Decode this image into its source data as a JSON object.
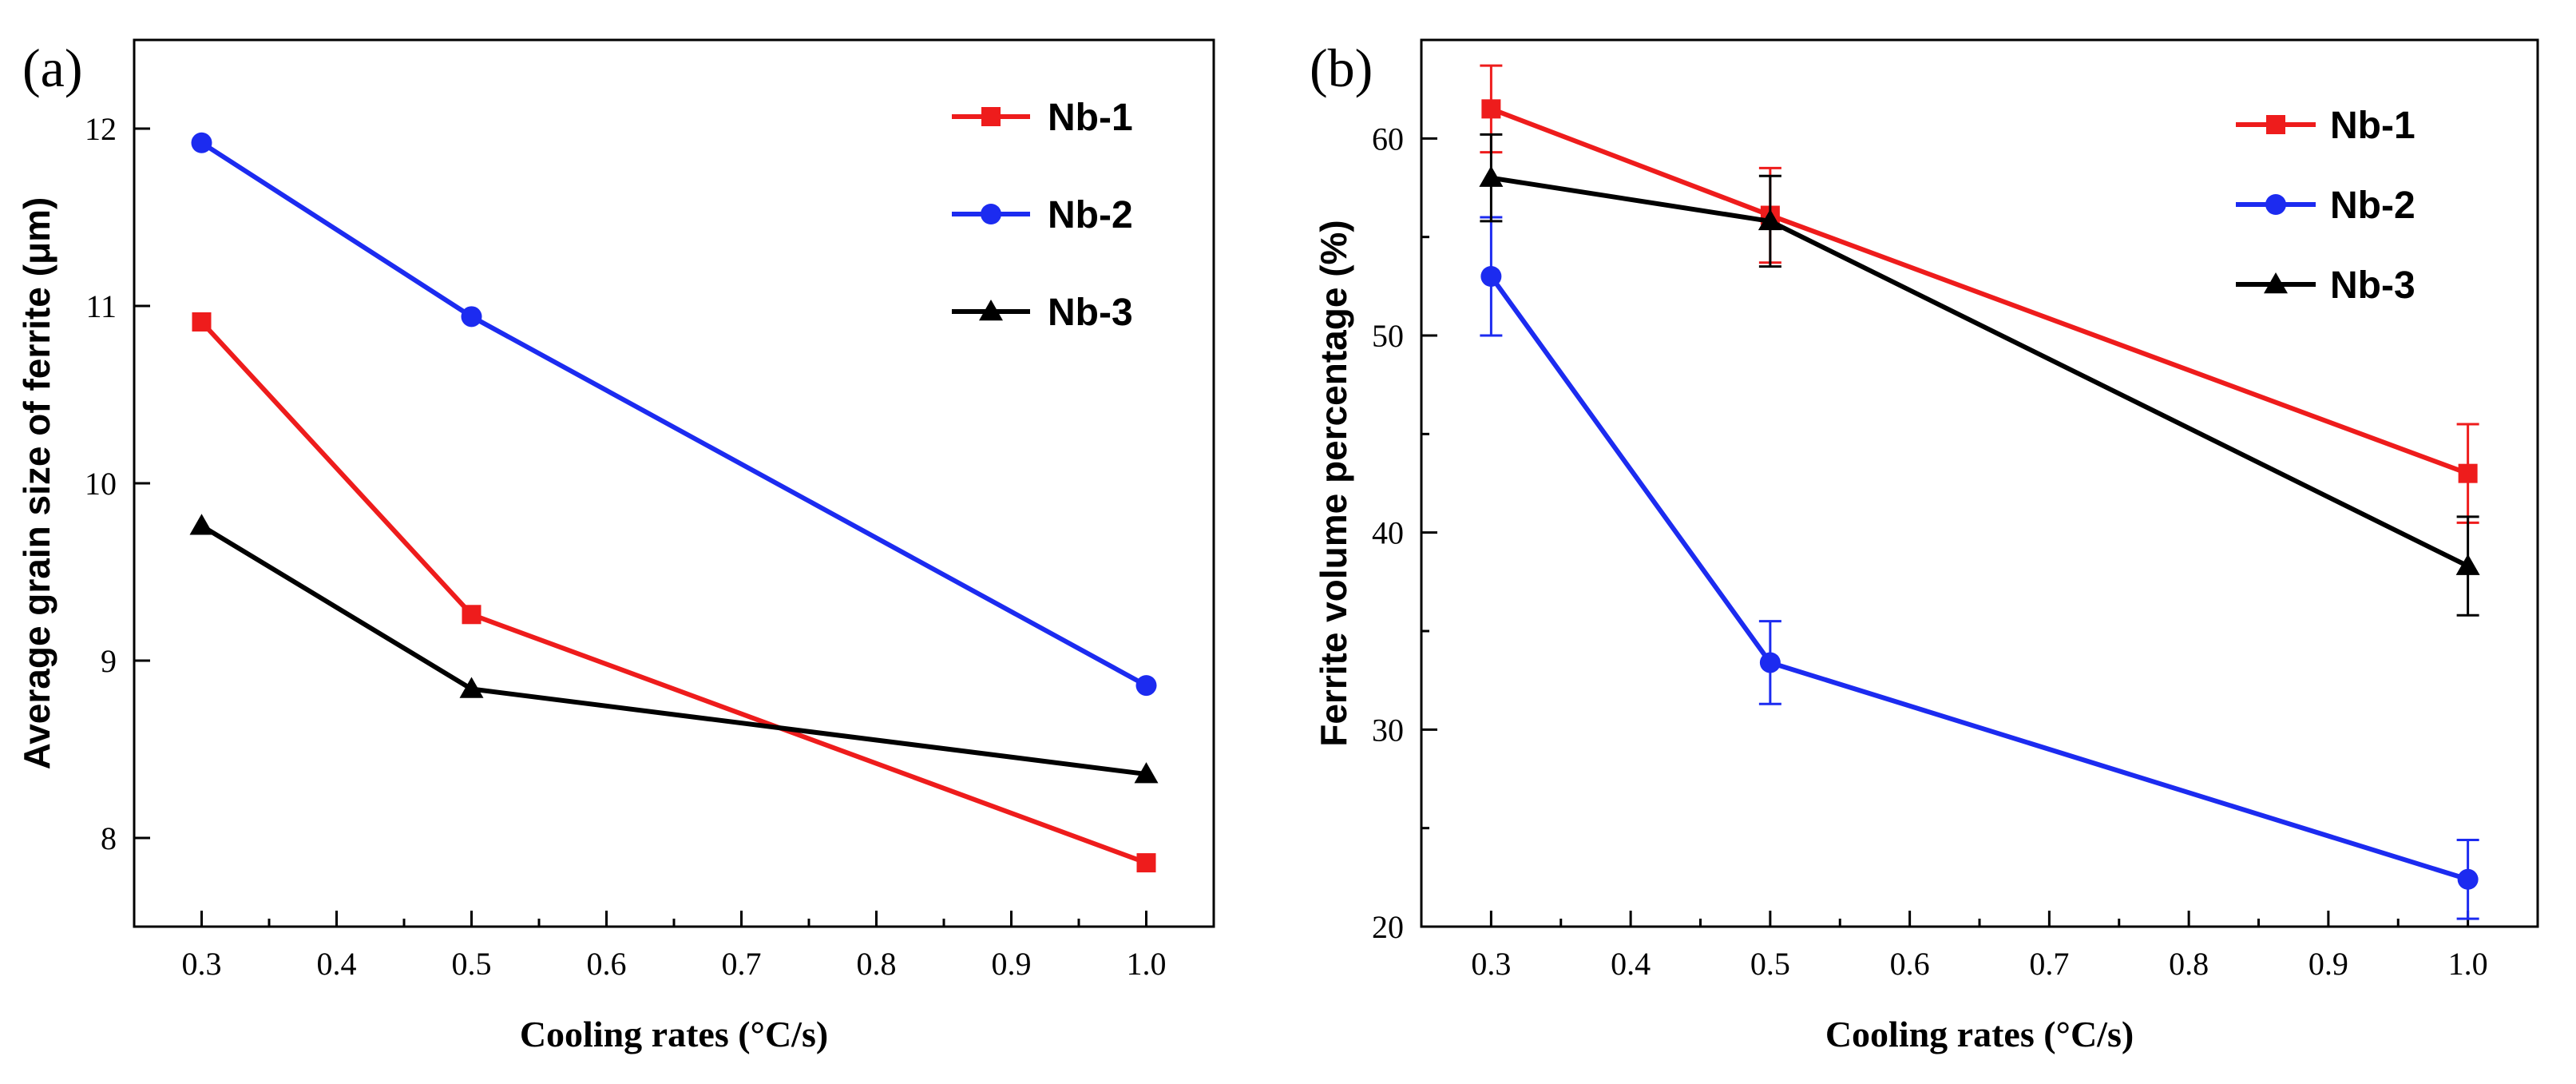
{
  "chart_data": [
    {
      "type": "line",
      "panel_label": "(a)",
      "title": "",
      "xlabel": "Cooling rates (°C/s)",
      "ylabel": "Average grain size of ferrite (μm)",
      "x": [
        0.3,
        0.5,
        1.0
      ],
      "xlim": [
        0.25,
        1.05
      ],
      "ylim": [
        7.5,
        12.5
      ],
      "xticks": [
        "0.3",
        "0.4",
        "0.5",
        "0.6",
        "0.7",
        "0.8",
        "0.9",
        "1.0"
      ],
      "yticks": [
        "8",
        "9",
        "10",
        "11",
        "12"
      ],
      "legend_position": "top-right",
      "grid": false,
      "series": [
        {
          "name": "Nb-1",
          "color": "#ee1c1c",
          "marker": "square",
          "values": [
            10.91,
            9.26,
            7.86
          ]
        },
        {
          "name": "Nb-2",
          "color": "#1c2bf0",
          "marker": "circle",
          "values": [
            11.92,
            10.94,
            8.86
          ]
        },
        {
          "name": "Nb-3",
          "color": "#000000",
          "marker": "triangle",
          "values": [
            9.76,
            8.84,
            8.36
          ]
        }
      ]
    },
    {
      "type": "line",
      "panel_label": "(b)",
      "title": "",
      "xlabel": "Cooling rates (°C/s)",
      "ylabel": "Ferrite volume percentage (%)",
      "x": [
        0.3,
        0.5,
        1.0
      ],
      "xlim": [
        0.25,
        1.05
      ],
      "ylim": [
        20,
        65
      ],
      "xticks": [
        "0.3",
        "0.4",
        "0.5",
        "0.6",
        "0.7",
        "0.8",
        "0.9",
        "1.0"
      ],
      "yticks": [
        "20",
        "30",
        "40",
        "50",
        "60"
      ],
      "legend_position": "top-right",
      "grid": false,
      "series": [
        {
          "name": "Nb-1",
          "color": "#ee1c1c",
          "marker": "square",
          "values": [
            61.5,
            56.1,
            43.0
          ],
          "errors": [
            2.2,
            2.4,
            2.5
          ]
        },
        {
          "name": "Nb-2",
          "color": "#1c2bf0",
          "marker": "circle",
          "values": [
            53.0,
            33.4,
            22.4
          ],
          "errors": [
            3.0,
            2.1,
            2.0
          ]
        },
        {
          "name": "Nb-3",
          "color": "#000000",
          "marker": "triangle",
          "values": [
            58.0,
            55.8,
            38.3
          ],
          "errors": [
            2.2,
            2.3,
            2.5
          ]
        }
      ]
    }
  ]
}
